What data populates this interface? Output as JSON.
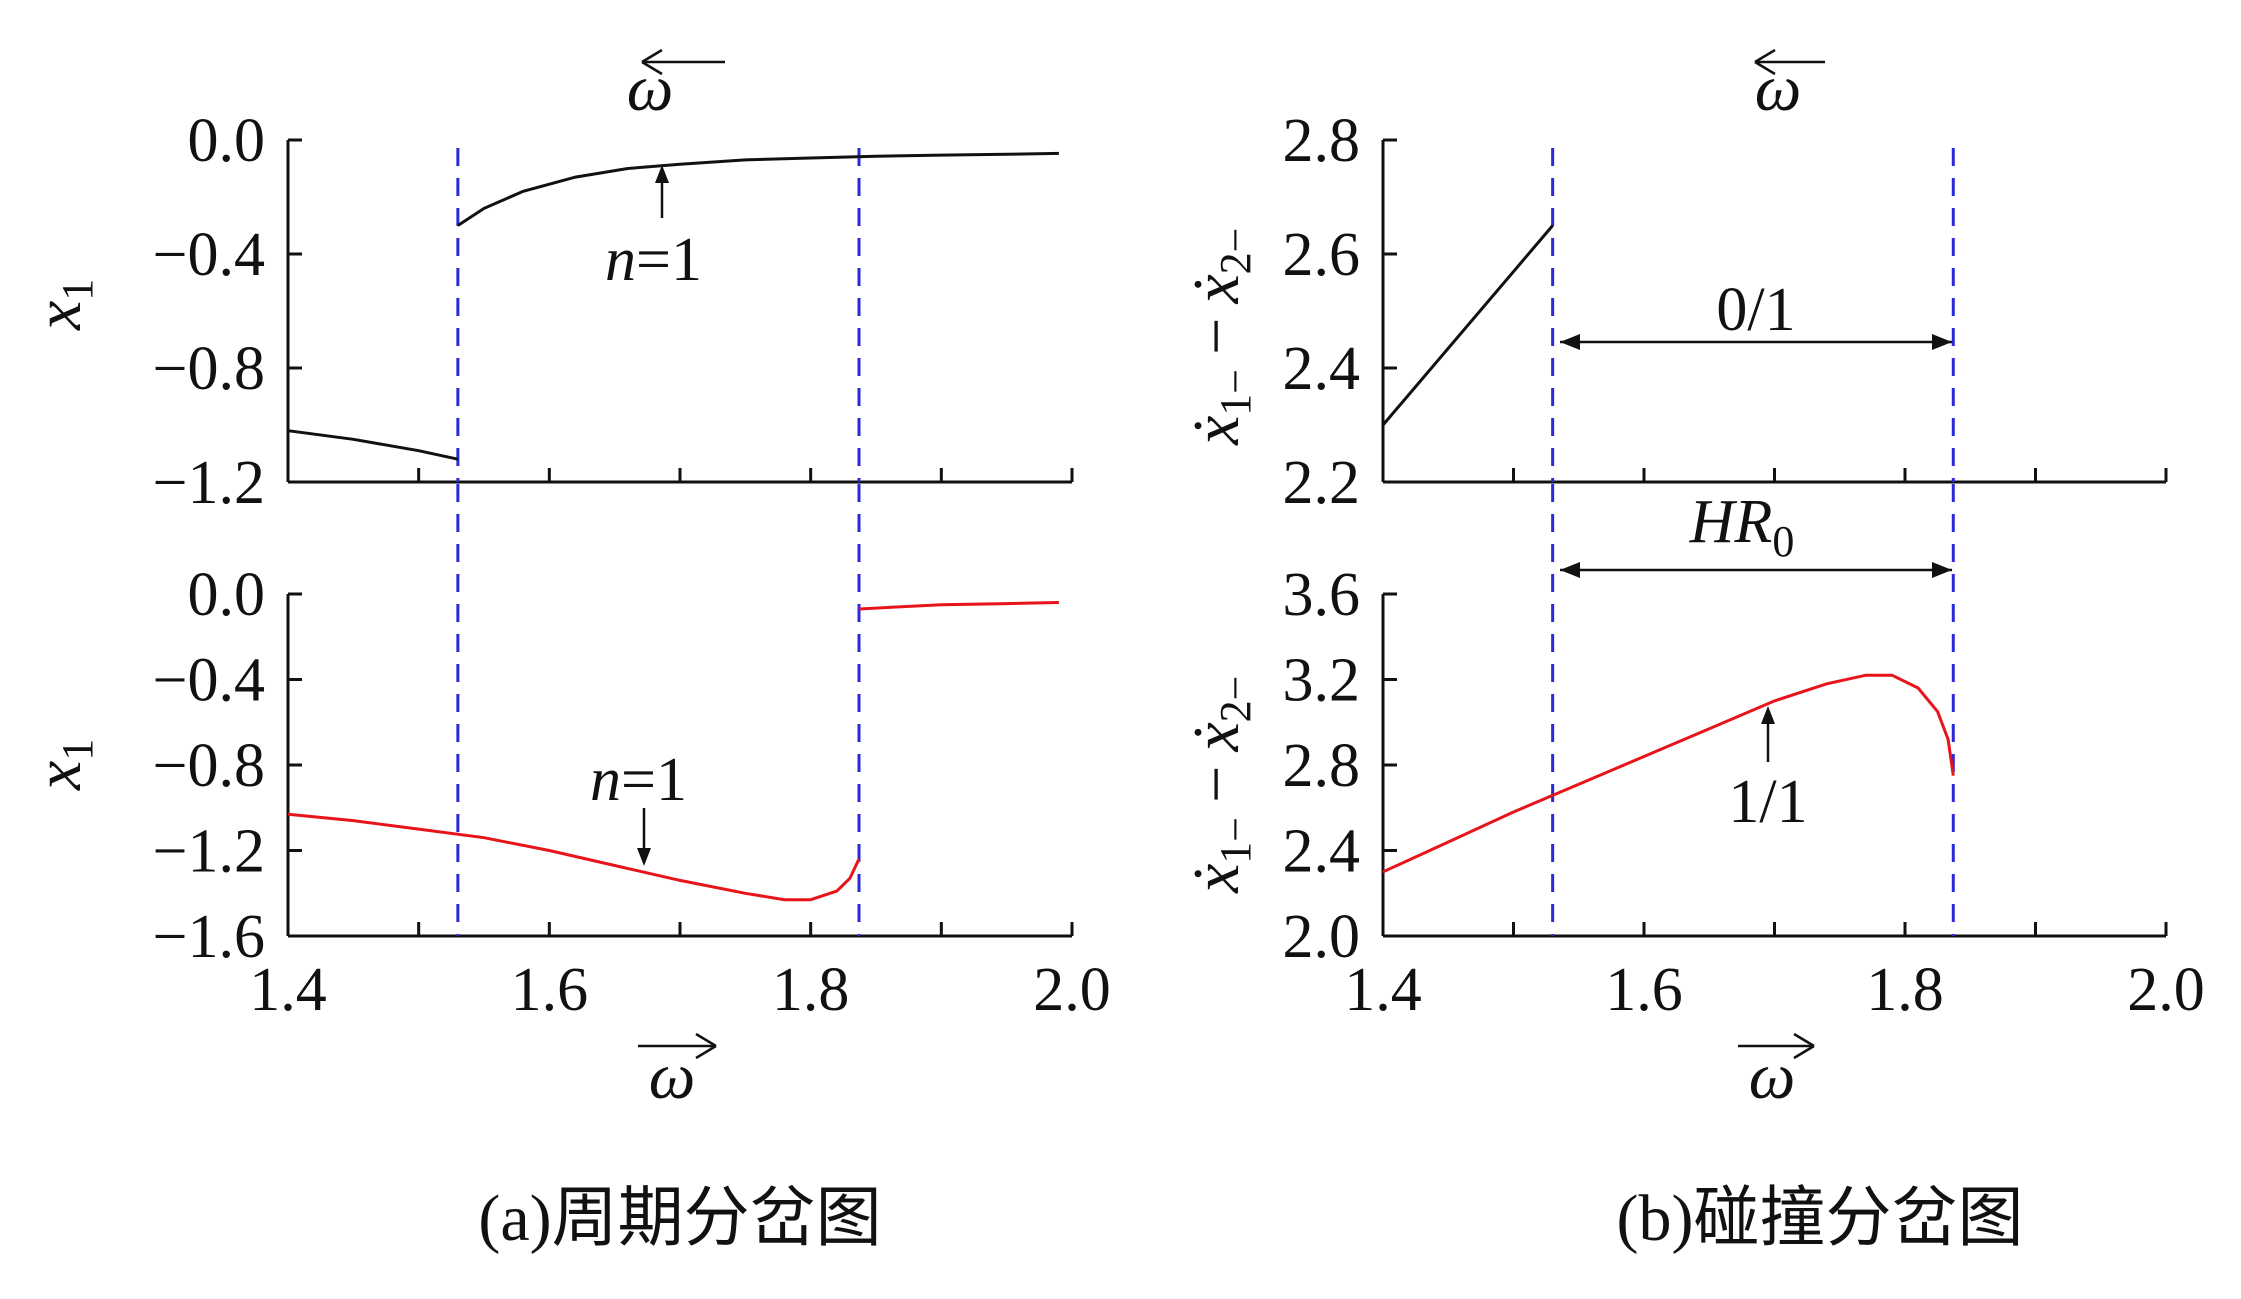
{
  "colors": {
    "black_series": "#111111",
    "red_series": "#e8141b",
    "bifurcation_line": "#2a2ad8",
    "axis": "#111111"
  },
  "panel_a": {
    "caption": "(a)周期分岔图",
    "top_xlabel": "ω",
    "bottom_xlabel": "ω",
    "top_ylabel": {
      "symbol": "x",
      "sub": "1"
    },
    "bottom_ylabel": {
      "symbol": "x",
      "sub": "1"
    },
    "top_annotation": {
      "italic": "n",
      "rest": "=1"
    },
    "bottom_annotation": {
      "italic": "n",
      "rest": "=1"
    }
  },
  "panel_b": {
    "caption": "(b)碰撞分岔图",
    "top_xlabel": "ω",
    "bottom_xlabel": "ω",
    "top_ylabel": {
      "a": "ẋ",
      "a_sub": "1−",
      "minus": "−",
      "b": "ẋ",
      "b_sub": "2−"
    },
    "bottom_ylabel": {
      "a": "ẋ",
      "a_sub": "1−",
      "minus": "−",
      "b": "ẋ",
      "b_sub": "2−"
    },
    "region_label_top": "0/1",
    "region_label_mid": {
      "italic": "HR",
      "sub": "0"
    },
    "curve_label_bottom": "1/1"
  },
  "chart_data": [
    {
      "type": "line",
      "panel": "a-top",
      "xlim": [
        1.4,
        2.0
      ],
      "ylim": [
        -1.2,
        0.0
      ],
      "yticks": [
        "0.0",
        "−0.4",
        "−0.8",
        "−1.2"
      ],
      "vlines": [
        1.53,
        1.837
      ],
      "series": [
        {
          "color": "#111111",
          "x": [
            1.4,
            1.45,
            1.5,
            1.53
          ],
          "y": [
            -1.02,
            -1.05,
            -1.09,
            -1.12
          ]
        },
        {
          "color": "#111111",
          "x": [
            1.53,
            1.55,
            1.58,
            1.62,
            1.66,
            1.7,
            1.75,
            1.8,
            1.85,
            1.9,
            1.95,
            1.99
          ],
          "y": [
            -0.3,
            -0.24,
            -0.18,
            -0.13,
            -0.1,
            -0.085,
            -0.07,
            -0.063,
            -0.057,
            -0.053,
            -0.05,
            -0.047
          ]
        }
      ]
    },
    {
      "type": "line",
      "panel": "a-bottom",
      "xlim": [
        1.4,
        2.0
      ],
      "ylim": [
        -1.6,
        0.0
      ],
      "xticks": [
        "1.4",
        "1.6",
        "1.8",
        "2.0"
      ],
      "yticks": [
        "0.0",
        "−0.4",
        "−0.8",
        "−1.2",
        "−1.6"
      ],
      "vlines": [
        1.53,
        1.837
      ],
      "series": [
        {
          "color": "#e8141b",
          "x": [
            1.4,
            1.45,
            1.5,
            1.55,
            1.6,
            1.65,
            1.7,
            1.75,
            1.78,
            1.8,
            1.82,
            1.83,
            1.837
          ],
          "y": [
            -1.03,
            -1.06,
            -1.1,
            -1.14,
            -1.2,
            -1.27,
            -1.34,
            -1.4,
            -1.43,
            -1.43,
            -1.39,
            -1.33,
            -1.24
          ]
        },
        {
          "color": "#e8141b",
          "x": [
            1.837,
            1.9,
            1.95,
            1.99
          ],
          "y": [
            -0.07,
            -0.05,
            -0.045,
            -0.04
          ]
        }
      ]
    },
    {
      "type": "line",
      "panel": "b-top",
      "xlim": [
        1.4,
        2.0
      ],
      "ylim": [
        2.2,
        2.8
      ],
      "yticks": [
        "2.8",
        "2.6",
        "2.4",
        "2.2"
      ],
      "vlines": [
        1.53,
        1.837
      ],
      "series": [
        {
          "color": "#111111",
          "x": [
            1.4,
            1.53
          ],
          "y": [
            2.3,
            2.65
          ]
        }
      ]
    },
    {
      "type": "line",
      "panel": "b-bottom",
      "xlim": [
        1.4,
        2.0
      ],
      "ylim": [
        2.0,
        3.6
      ],
      "xticks": [
        "1.4",
        "1.6",
        "1.8",
        "2.0"
      ],
      "yticks": [
        "3.6",
        "3.2",
        "2.8",
        "2.4",
        "2.0"
      ],
      "vlines": [
        1.53,
        1.837
      ],
      "series": [
        {
          "color": "#e8141b",
          "x": [
            1.4,
            1.45,
            1.5,
            1.55,
            1.6,
            1.65,
            1.7,
            1.74,
            1.77,
            1.79,
            1.81,
            1.825,
            1.833,
            1.837
          ],
          "y": [
            2.3,
            2.44,
            2.58,
            2.71,
            2.84,
            2.97,
            3.1,
            3.18,
            3.22,
            3.22,
            3.16,
            3.05,
            2.92,
            2.75
          ]
        }
      ]
    }
  ]
}
